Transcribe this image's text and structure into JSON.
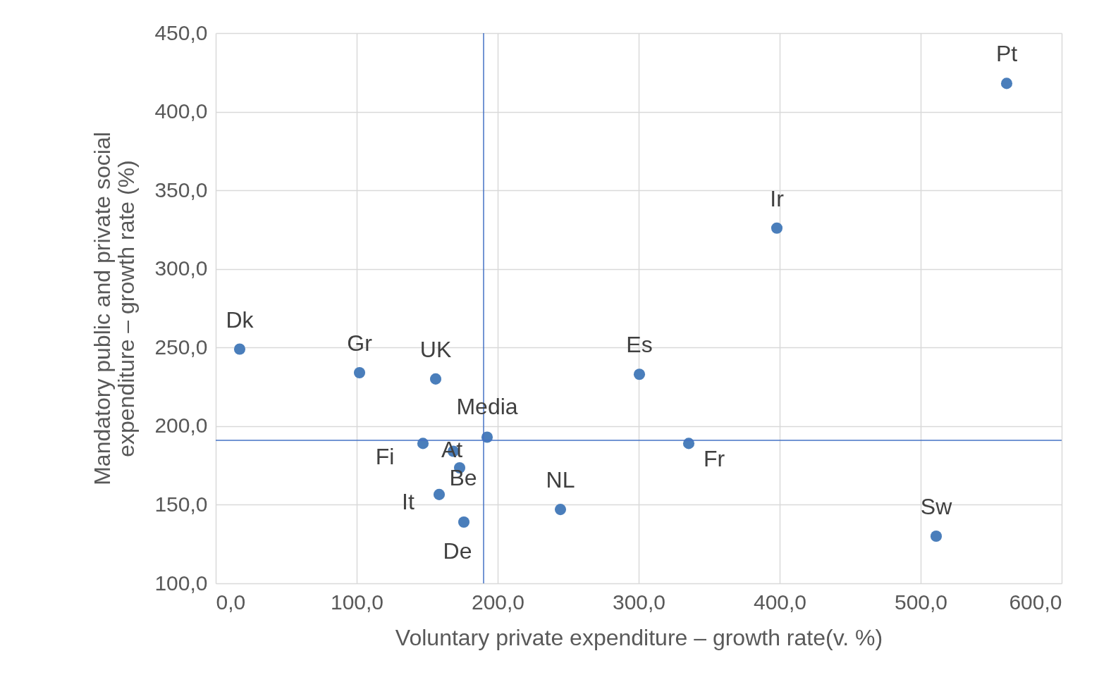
{
  "chart_data": {
    "type": "scatter",
    "xlabel": "Voluntary private expenditure – growth rate(v. %)",
    "ylabel": "Mandatory public and private social\nexpenditure – growth rate (%)",
    "x": [
      17,
      102,
      156,
      300.5,
      398,
      561,
      192.5,
      147,
      168.5,
      173,
      158.5,
      176,
      244.5,
      335.5,
      511
    ],
    "series": [
      {
        "color": "#4a7ebb",
        "values": [
          249,
          234,
          230,
          233,
          326,
          418,
          193,
          189,
          184,
          173.5,
          156.5,
          139,
          147,
          189,
          130
        ]
      }
    ],
    "annotations": [
      {
        "text": "Dk",
        "x": 17,
        "y": 249
      },
      {
        "text": "Gr",
        "x": 102,
        "y": 234
      },
      {
        "text": "UK",
        "x": 156,
        "y": 230
      },
      {
        "text": "Es",
        "x": 300.5,
        "y": 233
      },
      {
        "text": "Ir",
        "x": 398,
        "y": 326
      },
      {
        "text": "Pt",
        "x": 561,
        "y": 418
      },
      {
        "text": "Media",
        "x": 192.5,
        "y": 193
      },
      {
        "text": "Fi",
        "x": 147,
        "y": 189
      },
      {
        "text": "At",
        "x": 168.5,
        "y": 184
      },
      {
        "text": "Be",
        "x": 173,
        "y": 173.5
      },
      {
        "text": "It",
        "x": 158.5,
        "y": 156.5
      },
      {
        "text": "De",
        "x": 176,
        "y": 139
      },
      {
        "text": "NL",
        "x": 244.5,
        "y": 147
      },
      {
        "text": "Fr",
        "x": 335.5,
        "y": 189
      },
      {
        "text": "Sw",
        "x": 511,
        "y": 130
      }
    ],
    "ref_lines": [
      {
        "axis": "x",
        "value": 190,
        "color": "#4472c4"
      },
      {
        "axis": "y",
        "value": 191,
        "color": "#4472c4"
      }
    ],
    "xlim": [
      0,
      600
    ],
    "xticks": [
      {
        "value": 0,
        "label": "0,0"
      },
      {
        "value": 100,
        "label": "100,0"
      },
      {
        "value": 200,
        "label": "200,0"
      },
      {
        "value": 300,
        "label": "300,0"
      },
      {
        "value": 400,
        "label": "400,0"
      },
      {
        "value": 500,
        "label": "500,0"
      },
      {
        "value": 600,
        "label": "600,0"
      }
    ],
    "ylim": [
      100,
      450
    ],
    "yticks": [
      {
        "value": 100,
        "label": "100,0"
      },
      {
        "value": 150,
        "label": "150,0"
      },
      {
        "value": 200,
        "label": "200,0"
      },
      {
        "value": 250,
        "label": "250,0"
      },
      {
        "value": 300,
        "label": "300,0"
      },
      {
        "value": 350,
        "label": "350,0"
      },
      {
        "value": 400,
        "label": "400,0"
      },
      {
        "value": 450,
        "label": "450,0"
      }
    ],
    "grid": true,
    "marker": "circle"
  }
}
